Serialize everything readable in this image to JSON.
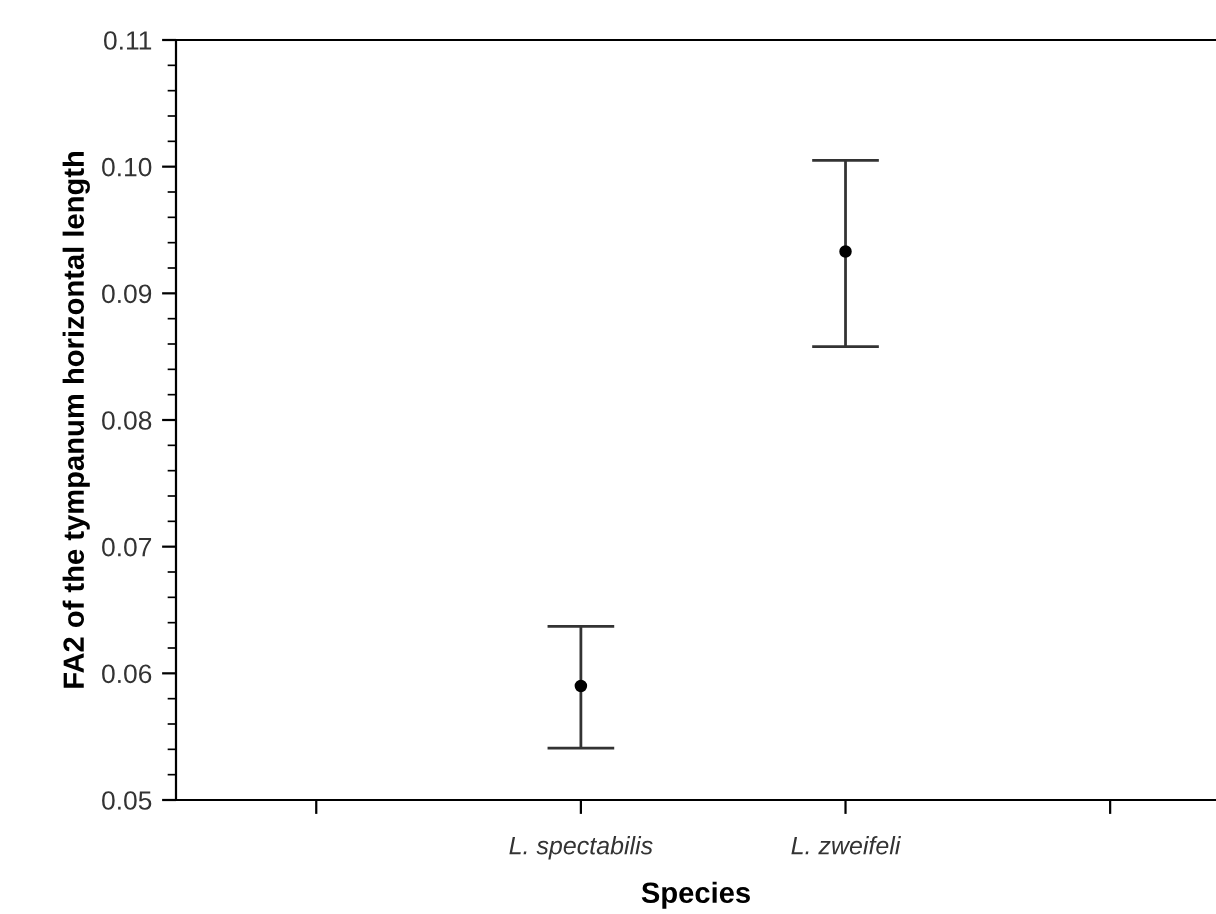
{
  "chart_data": {
    "type": "scatter",
    "xlabel": "Species",
    "ylabel": "FA2 of the tympanum horizontal length",
    "categories": [
      null,
      "L. spectabilis",
      "L. zweifeli",
      null
    ],
    "values": [
      null,
      0.059,
      0.0933,
      null
    ],
    "errors": [
      null,
      [
        0.0541,
        0.0637
      ],
      [
        0.0858,
        0.1005
      ],
      null
    ],
    "color": "#000000",
    "marker": "circle",
    "ylim": [
      0.05,
      0.11
    ],
    "yticks": [
      0.05,
      0.06,
      0.07,
      0.08,
      0.09,
      {
        "value": 0.1,
        "label": "0.10"
      },
      0.11
    ],
    "grid": false,
    "legend": false
  }
}
